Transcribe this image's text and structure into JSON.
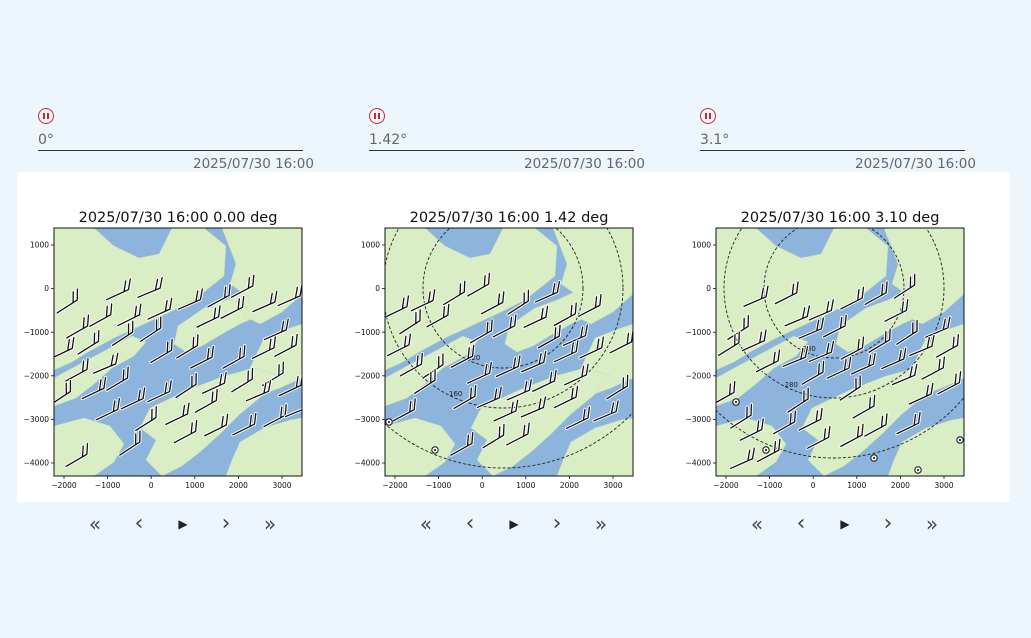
{
  "panels": [
    {
      "value": "0°",
      "timestamp": "2025/07/30 16:00",
      "title": "2025/07/30 16:00 0.00 deg",
      "contours": []
    },
    {
      "value": "1.42°",
      "timestamp": "2025/07/30 16:00",
      "title": "2025/07/30 16:00 1.42 deg",
      "contours": [
        "120",
        "160"
      ]
    },
    {
      "value": "3.1°",
      "timestamp": "2025/07/30 16:00",
      "title": "2025/07/30 16:00 3.10 deg",
      "contours": [
        "280",
        "280"
      ]
    }
  ],
  "axis": {
    "x_ticks": [
      "−2000",
      "−1000",
      "0",
      "1000",
      "2000",
      "3000"
    ],
    "y_ticks": [
      "1000",
      "0",
      "−1000",
      "−2000",
      "−3000",
      "−4000"
    ]
  },
  "controls": {
    "first": "«",
    "prev": "‹",
    "play": "▶",
    "next": "›",
    "last": "»"
  },
  "colors": {
    "water": "#8cb4dc",
    "land": "#d9eec5",
    "accent": "#cc2a2a"
  }
}
